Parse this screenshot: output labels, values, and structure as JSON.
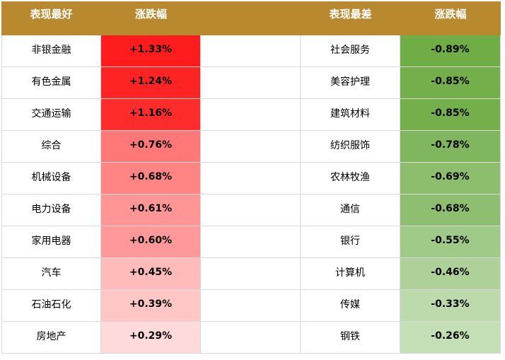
{
  "header": [
    "表现最好",
    "涨跌幅",
    "表现最差",
    "涨跌幅"
  ],
  "header_color": "#b8892f",
  "rows": [
    {
      "best": "非银金融",
      "best_change": "+1.33%",
      "best_color": "#ff1c1c",
      "worst": "社会服务",
      "worst_change": "-0.89%",
      "worst_color": "#70ad47"
    },
    {
      "best": "有色金属",
      "best_change": "+1.24%",
      "best_color": "#ff2424",
      "worst": "美容护理",
      "worst_change": "-0.85%",
      "worst_color": "#74af4b"
    },
    {
      "best": "交通运输",
      "best_change": "+1.16%",
      "best_color": "#ff2c2c",
      "worst": "建筑材料",
      "worst_change": "-0.85%",
      "worst_color": "#74af4b"
    },
    {
      "best": "综合",
      "best_change": "+0.76%",
      "best_color": "#ff7777",
      "worst": "纺织服饰",
      "worst_change": "-0.78%",
      "worst_color": "#80b75e"
    },
    {
      "best": "机械设备",
      "best_change": "+0.68%",
      "best_color": "#ff8585",
      "worst": "农林牧渔",
      "worst_change": "-0.69%",
      "worst_color": "#8cbe6e"
    },
    {
      "best": "电力设备",
      "best_change": "+0.61%",
      "best_color": "#ff9595",
      "worst": "通信",
      "worst_change": "-0.68%",
      "worst_color": "#8ebf70"
    },
    {
      "best": "家用电器",
      "best_change": "+0.60%",
      "best_color": "#ff9898",
      "worst": "银行",
      "worst_change": "-0.55%",
      "worst_color": "#a0ca87"
    },
    {
      "best": "汽车",
      "best_change": "+0.45%",
      "best_color": "#ffbaba",
      "worst": "计算机",
      "worst_change": "-0.46%",
      "worst_color": "#add198"
    },
    {
      "best": "石油石化",
      "best_change": "+0.39%",
      "best_color": "#ffc6c6",
      "worst": "传媒",
      "worst_change": "-0.33%",
      "worst_color": "#bcdaab"
    },
    {
      "best": "房地产",
      "best_change": "+0.29%",
      "best_color": "#ffdada",
      "worst": "钢铁",
      "worst_change": "-0.26%",
      "worst_color": "#c4deb5"
    }
  ]
}
